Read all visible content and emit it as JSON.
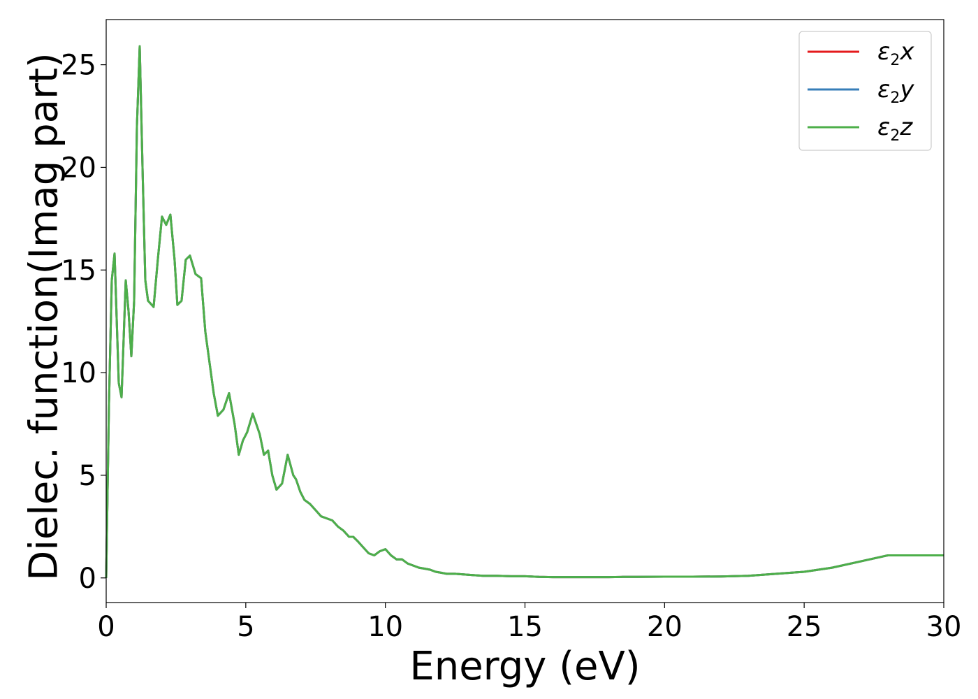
{
  "chart_data": {
    "type": "line",
    "title": "",
    "xlabel": "Energy (eV)",
    "ylabel": "Dielec. function(Imag part)",
    "xlim": [
      0,
      30
    ],
    "ylim": [
      -1.2,
      27.2
    ],
    "x_ticks": [
      "0",
      "5",
      "10",
      "15",
      "20",
      "25",
      "30"
    ],
    "x_tick_values": [
      0,
      5,
      10,
      15,
      20,
      25,
      30
    ],
    "y_ticks": [
      "0",
      "5",
      "10",
      "15",
      "20",
      "25"
    ],
    "y_tick_values": [
      0,
      5,
      10,
      15,
      20,
      25
    ],
    "grid": false,
    "legend_position": "top-right",
    "x": [
      0,
      0.1,
      0.2,
      0.3,
      0.45,
      0.55,
      0.7,
      0.8,
      0.9,
      1.0,
      1.1,
      1.2,
      1.3,
      1.4,
      1.5,
      1.7,
      1.85,
      2.0,
      2.15,
      2.3,
      2.45,
      2.55,
      2.7,
      2.85,
      3.0,
      3.2,
      3.4,
      3.55,
      3.7,
      3.85,
      4.0,
      4.2,
      4.4,
      4.6,
      4.75,
      4.9,
      5.05,
      5.25,
      5.5,
      5.65,
      5.8,
      5.95,
      6.1,
      6.3,
      6.5,
      6.7,
      6.8,
      6.95,
      7.1,
      7.3,
      7.5,
      7.7,
      7.9,
      8.1,
      8.3,
      8.5,
      8.7,
      8.85,
      9.0,
      9.2,
      9.4,
      9.6,
      9.8,
      10.0,
      10.2,
      10.4,
      10.6,
      10.8,
      11.0,
      11.2,
      11.4,
      11.6,
      11.8,
      12.0,
      12.2,
      12.5,
      13.0,
      13.5,
      14.0,
      14.5,
      15.0,
      15.5,
      16.0,
      16.5,
      17.0,
      17.5,
      18.0,
      18.5,
      19.0,
      20.0,
      21.0,
      22.0,
      23.0,
      24.0,
      25.0,
      26.0,
      27.0,
      28.0,
      28.5,
      28.8,
      29.0,
      29.3,
      29.6,
      29.8,
      30.0
    ],
    "series": [
      {
        "name": "ε2x",
        "color": "#e41a1c",
        "values": [
          0.0,
          8.5,
          14.5,
          15.8,
          9.5,
          8.8,
          14.5,
          13.0,
          10.8,
          13.5,
          22.0,
          25.9,
          20.0,
          14.5,
          13.5,
          13.2,
          15.5,
          17.6,
          17.2,
          17.7,
          15.5,
          13.3,
          13.5,
          15.5,
          15.7,
          14.8,
          14.6,
          12.0,
          10.5,
          9.0,
          7.9,
          8.2,
          9.0,
          7.5,
          6.0,
          6.7,
          7.1,
          8.0,
          7.0,
          6.0,
          6.2,
          5.0,
          4.3,
          4.6,
          6.0,
          5.0,
          4.8,
          4.2,
          3.8,
          3.6,
          3.3,
          3.0,
          2.9,
          2.8,
          2.5,
          2.3,
          2.0,
          2.0,
          1.8,
          1.5,
          1.2,
          1.1,
          1.3,
          1.4,
          1.1,
          0.9,
          0.9,
          0.7,
          0.6,
          0.5,
          0.45,
          0.4,
          0.3,
          0.25,
          0.2,
          0.2,
          0.15,
          0.1,
          0.1,
          0.08,
          0.08,
          0.05,
          0.04,
          0.04,
          0.04,
          0.04,
          0.04,
          0.05,
          0.05,
          0.06,
          0.06,
          0.07,
          0.1,
          0.2,
          0.3,
          0.5,
          0.8,
          1.1,
          1.1,
          1.1,
          1.1,
          1.1,
          1.1,
          1.1,
          1.1
        ]
      },
      {
        "name": "ε2y",
        "color": "#377eb8",
        "values": [
          0.0,
          8.5,
          14.5,
          15.8,
          9.5,
          8.8,
          14.5,
          13.0,
          10.8,
          13.5,
          22.0,
          25.9,
          20.0,
          14.5,
          13.5,
          13.2,
          15.5,
          17.6,
          17.2,
          17.7,
          15.5,
          13.3,
          13.5,
          15.5,
          15.7,
          14.8,
          14.6,
          12.0,
          10.5,
          9.0,
          7.9,
          8.2,
          9.0,
          7.5,
          6.0,
          6.7,
          7.1,
          8.0,
          7.0,
          6.0,
          6.2,
          5.0,
          4.3,
          4.6,
          6.0,
          5.0,
          4.8,
          4.2,
          3.8,
          3.6,
          3.3,
          3.0,
          2.9,
          2.8,
          2.5,
          2.3,
          2.0,
          2.0,
          1.8,
          1.5,
          1.2,
          1.1,
          1.3,
          1.4,
          1.1,
          0.9,
          0.9,
          0.7,
          0.6,
          0.5,
          0.45,
          0.4,
          0.3,
          0.25,
          0.2,
          0.2,
          0.15,
          0.1,
          0.1,
          0.08,
          0.08,
          0.05,
          0.04,
          0.04,
          0.04,
          0.04,
          0.04,
          0.05,
          0.05,
          0.06,
          0.06,
          0.07,
          0.1,
          0.2,
          0.3,
          0.5,
          0.8,
          1.1,
          1.1,
          1.1,
          1.1,
          1.1,
          1.1,
          1.1,
          1.1
        ]
      },
      {
        "name": "ε2z",
        "color": "#4daf4a",
        "values": [
          0.0,
          8.5,
          14.5,
          15.8,
          9.5,
          8.8,
          14.5,
          13.0,
          10.8,
          13.5,
          22.0,
          25.9,
          20.0,
          14.5,
          13.5,
          13.2,
          15.5,
          17.6,
          17.2,
          17.7,
          15.5,
          13.3,
          13.5,
          15.5,
          15.7,
          14.8,
          14.6,
          12.0,
          10.5,
          9.0,
          7.9,
          8.2,
          9.0,
          7.5,
          6.0,
          6.7,
          7.1,
          8.0,
          7.0,
          6.0,
          6.2,
          5.0,
          4.3,
          4.6,
          6.0,
          5.0,
          4.8,
          4.2,
          3.8,
          3.6,
          3.3,
          3.0,
          2.9,
          2.8,
          2.5,
          2.3,
          2.0,
          2.0,
          1.8,
          1.5,
          1.2,
          1.1,
          1.3,
          1.4,
          1.1,
          0.9,
          0.9,
          0.7,
          0.6,
          0.5,
          0.45,
          0.4,
          0.3,
          0.25,
          0.2,
          0.2,
          0.15,
          0.1,
          0.1,
          0.08,
          0.08,
          0.05,
          0.04,
          0.04,
          0.04,
          0.04,
          0.04,
          0.05,
          0.05,
          0.06,
          0.06,
          0.07,
          0.1,
          0.2,
          0.3,
          0.5,
          0.8,
          1.1,
          1.1,
          1.1,
          1.1,
          1.1,
          1.1,
          1.1,
          1.1
        ]
      }
    ],
    "legend": [
      {
        "base": "ε",
        "sub": "2",
        "axis": "x",
        "color": "#e41a1c"
      },
      {
        "base": "ε",
        "sub": "2",
        "axis": "y",
        "color": "#377eb8"
      },
      {
        "base": "ε",
        "sub": "2",
        "axis": "z",
        "color": "#4daf4a"
      }
    ]
  }
}
